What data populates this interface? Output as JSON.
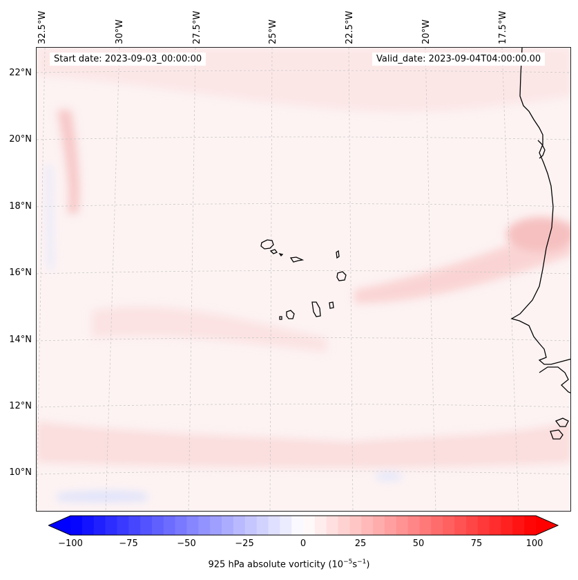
{
  "map": {
    "start_date_label": "Start date: 2023-09-03_00:00:00",
    "valid_date_label": "Valid_date: 2023-09-04T04:00:00.00",
    "longitude_labels": [
      "32.5°W",
      "30°W",
      "27.5°W",
      "25°W",
      "22.5°W",
      "20°W",
      "17.5°W"
    ],
    "latitude_labels": [
      "22°N",
      "20°N",
      "18°N",
      "16°N",
      "14°N",
      "12°N",
      "10°N"
    ],
    "extent": {
      "lon_min": -32.6,
      "lon_max": -15.0,
      "lat_min": 8.9,
      "lat_max": 22.7
    },
    "field": "925 hPa absolute vorticity",
    "background_color": "#fdf3f3",
    "features": [
      "coastline-west-africa",
      "cape-verde-islands"
    ]
  },
  "colorbar": {
    "ticks": [
      "−100",
      "−75",
      "−50",
      "−25",
      "0",
      "25",
      "50",
      "75",
      "100"
    ],
    "range": [
      -100,
      100
    ],
    "extend": "both",
    "colormap": "bwr",
    "label_text": "925 hPa absolute vorticity (",
    "label_base": "10",
    "label_exp1": "−5",
    "label_unit": "s",
    "label_exp2": "−1",
    "label_close": ")"
  }
}
